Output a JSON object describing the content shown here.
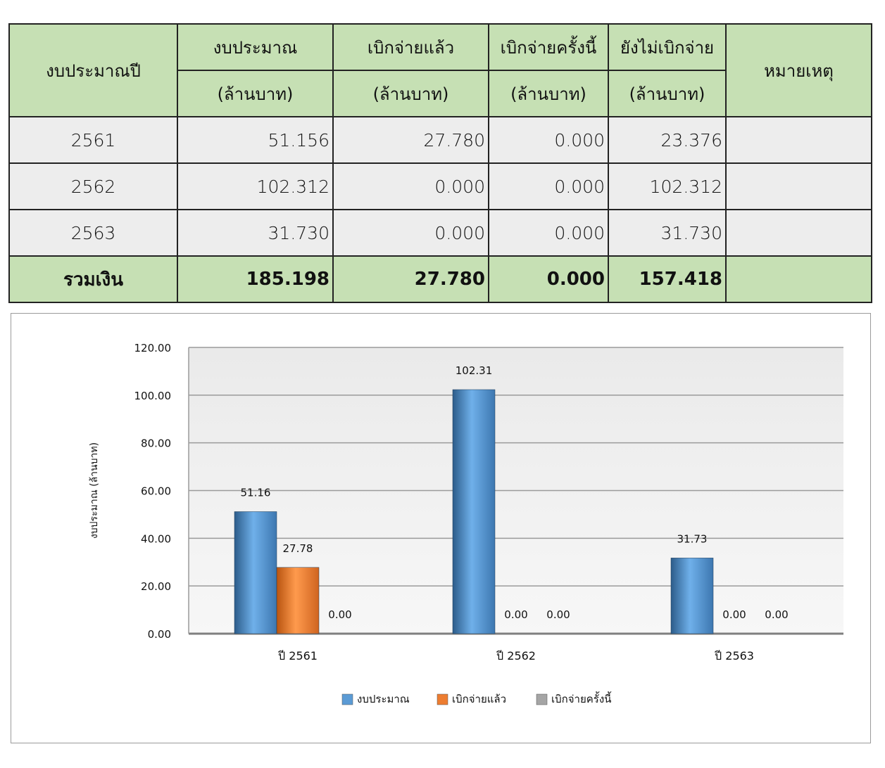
{
  "table": {
    "header": {
      "year": "งบประมาณปี",
      "budget": "งบประมาณ",
      "disbursed": "เบิกจ่ายแล้ว",
      "disbursed_now": "เบิกจ่ายครั้งนี้",
      "not_disbursed": "ยังไม่เบิกจ่าย",
      "unit": "(ล้านบาท)",
      "remark": "หมายเหตุ"
    },
    "rows": [
      {
        "year": "2561",
        "budget": "51.156",
        "disbursed": "27.780",
        "disbursed_now": "0.000",
        "not_disbursed": "23.376",
        "remark": ""
      },
      {
        "year": "2562",
        "budget": "102.312",
        "disbursed": "0.000",
        "disbursed_now": "0.000",
        "not_disbursed": "102.312",
        "remark": ""
      },
      {
        "year": "2563",
        "budget": "31.730",
        "disbursed": "0.000",
        "disbursed_now": "0.000",
        "not_disbursed": "31.730",
        "remark": ""
      }
    ],
    "total": {
      "label": "รวมเงิน",
      "budget": "185.198",
      "disbursed": "27.780",
      "disbursed_now": "0.000",
      "not_disbursed": "157.418",
      "remark": ""
    }
  },
  "chart_data": {
    "type": "bar",
    "categories": [
      "ปี 2561",
      "ปี 2562",
      "ปี 2563"
    ],
    "series": [
      {
        "name": "งบประมาณ",
        "values": [
          51.16,
          102.31,
          31.73
        ],
        "labels": [
          "51.16",
          "102.31",
          "31.73"
        ],
        "color": "#5b9bd5"
      },
      {
        "name": "เบิกจ่ายแล้ว",
        "values": [
          27.78,
          0,
          0
        ],
        "labels": [
          "27.78",
          "0.00",
          "0.00"
        ],
        "color": "#ed7d31"
      },
      {
        "name": "เบิกจ่ายครั้งนี้",
        "values": [
          0,
          0,
          0
        ],
        "labels": [
          "0.00",
          "0.00",
          "0.00"
        ],
        "color": "#a5a5a5"
      }
    ],
    "ylabel": "งบประมาณ (ล้านบาท)",
    "ylim": [
      0,
      120
    ],
    "yticks": [
      "0.00",
      "20.00",
      "40.00",
      "60.00",
      "80.00",
      "100.00",
      "120.00"
    ],
    "grid": true,
    "legend": "bottom"
  }
}
